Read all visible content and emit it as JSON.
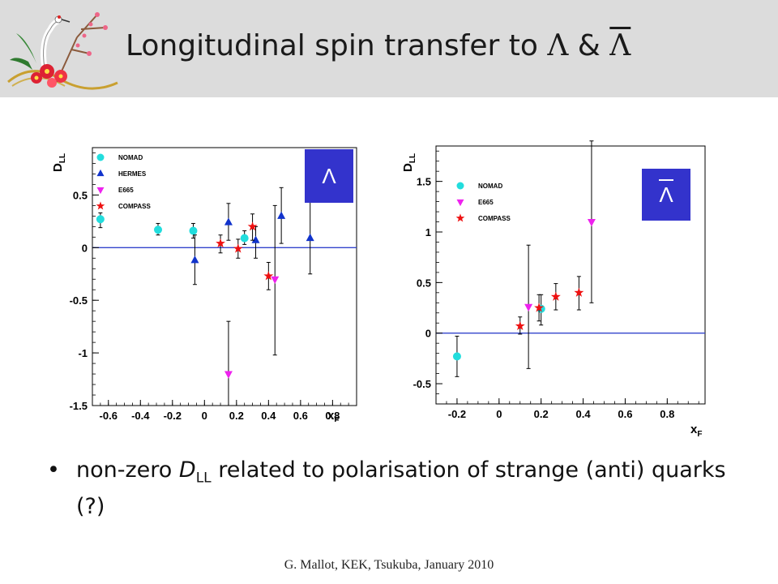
{
  "slide": {
    "title_prefix": "Longitudinal spin transfer to",
    "title_sym1": "Λ",
    "title_amp": "&",
    "title_sym2": "Λ",
    "bullet_pre": "non-zero ",
    "bullet_var": "D",
    "bullet_sub": "LL",
    "bullet_post": " related to polarisation of strange (anti) quarks  (?)",
    "footer": "G. Mallot, KEK, Tsukuba, January 2010",
    "colors": {
      "header": "#dcdcdc",
      "badge": "#3333cc",
      "zero_line": "#3344cc"
    }
  },
  "chart_data": [
    {
      "type": "scatter",
      "badge": "Λ",
      "ylabel_main": "D",
      "ylabel_sub": "LL",
      "xlabel_main": "x",
      "xlabel_sub": "F",
      "xlim": [
        -0.7,
        0.95
      ],
      "ylim": [
        -1.5,
        0.95
      ],
      "xticks": [
        -0.6,
        -0.4,
        -0.2,
        0,
        0.2,
        0.4,
        0.6,
        0.8
      ],
      "xtick_labels": [
        "-0.6",
        "-0.4",
        "-0.2",
        "0",
        "0.2",
        "0.4",
        "0.6",
        "0.8"
      ],
      "yticks": [
        -1.5,
        -1,
        -0.5,
        0,
        0.5
      ],
      "ytick_labels": [
        "-1.5",
        "-1",
        "-0.5",
        "0",
        "0.5"
      ],
      "zero_line": 0,
      "legend_position": "top-left",
      "series": [
        {
          "name": "NOMAD",
          "color": "#22dddd",
          "marker": "circle",
          "points": [
            {
              "x": -0.65,
              "y": 0.27,
              "lo": 0.19,
              "hi": 0.33
            },
            {
              "x": -0.29,
              "y": 0.17,
              "lo": 0.12,
              "hi": 0.23
            },
            {
              "x": -0.07,
              "y": 0.16,
              "lo": 0.09,
              "hi": 0.23
            },
            {
              "x": 0.25,
              "y": 0.09,
              "lo": 0.03,
              "hi": 0.16
            }
          ]
        },
        {
          "name": "HERMES",
          "color": "#1133cc",
          "marker": "triangle-up",
          "points": [
            {
              "x": -0.06,
              "y": -0.12,
              "lo": -0.35,
              "hi": 0.12
            },
            {
              "x": 0.15,
              "y": 0.24,
              "lo": 0.07,
              "hi": 0.42
            },
            {
              "x": 0.32,
              "y": 0.07,
              "lo": -0.1,
              "hi": 0.2
            },
            {
              "x": 0.48,
              "y": 0.3,
              "lo": 0.04,
              "hi": 0.57
            },
            {
              "x": 0.66,
              "y": 0.09,
              "lo": -0.25,
              "hi": 0.43
            }
          ]
        },
        {
          "name": "E665",
          "color": "#ee22ee",
          "marker": "triangle-down",
          "points": [
            {
              "x": 0.15,
              "y": -1.2,
              "lo": -1.5,
              "hi": -0.7
            },
            {
              "x": 0.44,
              "y": -0.3,
              "lo": -1.02,
              "hi": 0.4
            }
          ]
        },
        {
          "name": "COMPASS",
          "color": "#ee1111",
          "marker": "star",
          "points": [
            {
              "x": 0.1,
              "y": 0.04,
              "lo": -0.05,
              "hi": 0.12
            },
            {
              "x": 0.21,
              "y": -0.01,
              "lo": -0.1,
              "hi": 0.08
            },
            {
              "x": 0.3,
              "y": 0.2,
              "lo": 0.07,
              "hi": 0.32
            },
            {
              "x": 0.4,
              "y": -0.27,
              "lo": -0.4,
              "hi": -0.14
            }
          ]
        }
      ]
    },
    {
      "type": "scatter",
      "badge": "Λ",
      "ylabel_main": "D",
      "ylabel_sub": "LL",
      "xlabel_main": "x",
      "xlabel_sub": "F",
      "xlim": [
        -0.3,
        0.98
      ],
      "ylim": [
        -0.7,
        1.85
      ],
      "xticks": [
        -0.2,
        0,
        0.2,
        0.4,
        0.6,
        0.8
      ],
      "xtick_labels": [
        "-0.2",
        "0",
        "0.2",
        "0.4",
        "0.6",
        "0.8"
      ],
      "yticks": [
        -0.5,
        0,
        0.5,
        1,
        1.5
      ],
      "ytick_labels": [
        "-0.5",
        "0",
        "0.5",
        "1",
        "1.5"
      ],
      "zero_line": 0,
      "legend_position": "top-left",
      "series": [
        {
          "name": "NOMAD",
          "color": "#22dddd",
          "marker": "circle",
          "points": [
            {
              "x": -0.2,
              "y": -0.23,
              "lo": -0.43,
              "hi": -0.03
            },
            {
              "x": 0.2,
              "y": 0.24,
              "lo": 0.08,
              "hi": 0.38
            }
          ]
        },
        {
          "name": "E665",
          "color": "#ee22ee",
          "marker": "triangle-down",
          "points": [
            {
              "x": 0.14,
              "y": 0.26,
              "lo": -0.35,
              "hi": 0.87
            },
            {
              "x": 0.44,
              "y": 1.1,
              "lo": 0.3,
              "hi": 1.9
            }
          ]
        },
        {
          "name": "COMPASS",
          "color": "#ee1111",
          "marker": "star",
          "points": [
            {
              "x": 0.1,
              "y": 0.07,
              "lo": -0.01,
              "hi": 0.16
            },
            {
              "x": 0.19,
              "y": 0.25,
              "lo": 0.12,
              "hi": 0.38
            },
            {
              "x": 0.27,
              "y": 0.36,
              "lo": 0.23,
              "hi": 0.49
            },
            {
              "x": 0.38,
              "y": 0.4,
              "lo": 0.23,
              "hi": 0.56
            }
          ]
        }
      ]
    }
  ]
}
